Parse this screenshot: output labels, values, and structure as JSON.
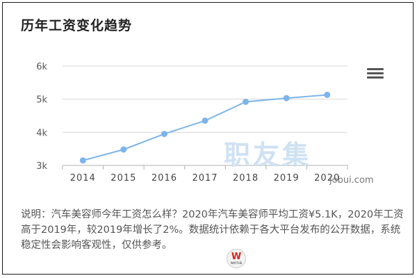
{
  "title": "历年工资变化趋势",
  "chart_data": {
    "type": "line",
    "categories": [
      "2014",
      "2015",
      "2016",
      "2017",
      "2018",
      "2019",
      "2020"
    ],
    "values": [
      3.15,
      3.48,
      3.95,
      4.35,
      4.92,
      5.03,
      5.13
    ],
    "ylim": [
      3,
      6
    ],
    "yticks": [
      3,
      4,
      5,
      6
    ],
    "ytick_labels": [
      "3k",
      "4k",
      "5k",
      "6k"
    ],
    "grid": true,
    "line_color": "#7cb5ec"
  },
  "watermark": {
    "text": "职友集",
    "url": "jobui.com"
  },
  "description": "说明：汽车美容师今年工资怎么样？2020年汽车美容师平均工资¥5.1K，2020年工资高于2019年，较2019年增长了2%。数据统计依赖于各大平台发布的公开数据，系统稳定性会影响客观性，仅供参考。",
  "badge": {
    "letter": "W",
    "caption": "WAYTHE"
  },
  "menu_icon": "hamburger-menu-icon"
}
